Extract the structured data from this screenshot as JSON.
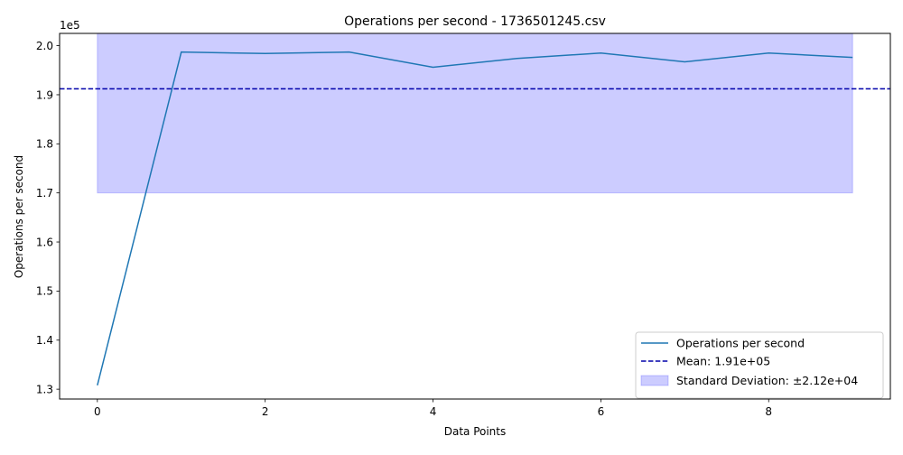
{
  "chart_data": {
    "type": "line",
    "title": "Operations per second - 1736501245.csv",
    "xlabel": "Data Points",
    "ylabel": "Operations per second",
    "y_offset_label": "1e5",
    "xlim": [
      -0.45,
      9.45
    ],
    "ylim": [
      1.28,
      2.025
    ],
    "x_ticks": [
      0,
      2,
      4,
      6,
      8
    ],
    "x_tick_labels": [
      "0",
      "2",
      "4",
      "6",
      "8"
    ],
    "y_ticks": [
      1.3,
      1.4,
      1.5,
      1.6,
      1.7,
      1.8,
      1.9,
      2.0
    ],
    "y_tick_labels": [
      "1.3",
      "1.4",
      "1.5",
      "1.6",
      "1.7",
      "1.8",
      "1.9",
      "2.0"
    ],
    "series": [
      {
        "name": "Operations per second",
        "color": "#1f77b4",
        "x": [
          0,
          1,
          2,
          3,
          4,
          5,
          6,
          7,
          8,
          9
        ],
        "y": [
          1.308,
          1.987,
          1.984,
          1.987,
          1.956,
          1.974,
          1.985,
          1.967,
          1.985,
          1.976
        ]
      }
    ],
    "mean": {
      "label": "Mean: 1.91e+05",
      "value": 1.912,
      "color": "#0000aa"
    },
    "std_band": {
      "label": "Standard Deviation: ±2.12e+04",
      "low": 1.7,
      "high": 2.124,
      "x_start": 0,
      "x_end": 9,
      "color": "#0000ff"
    },
    "legend_position": "lower-right",
    "grid": false
  }
}
